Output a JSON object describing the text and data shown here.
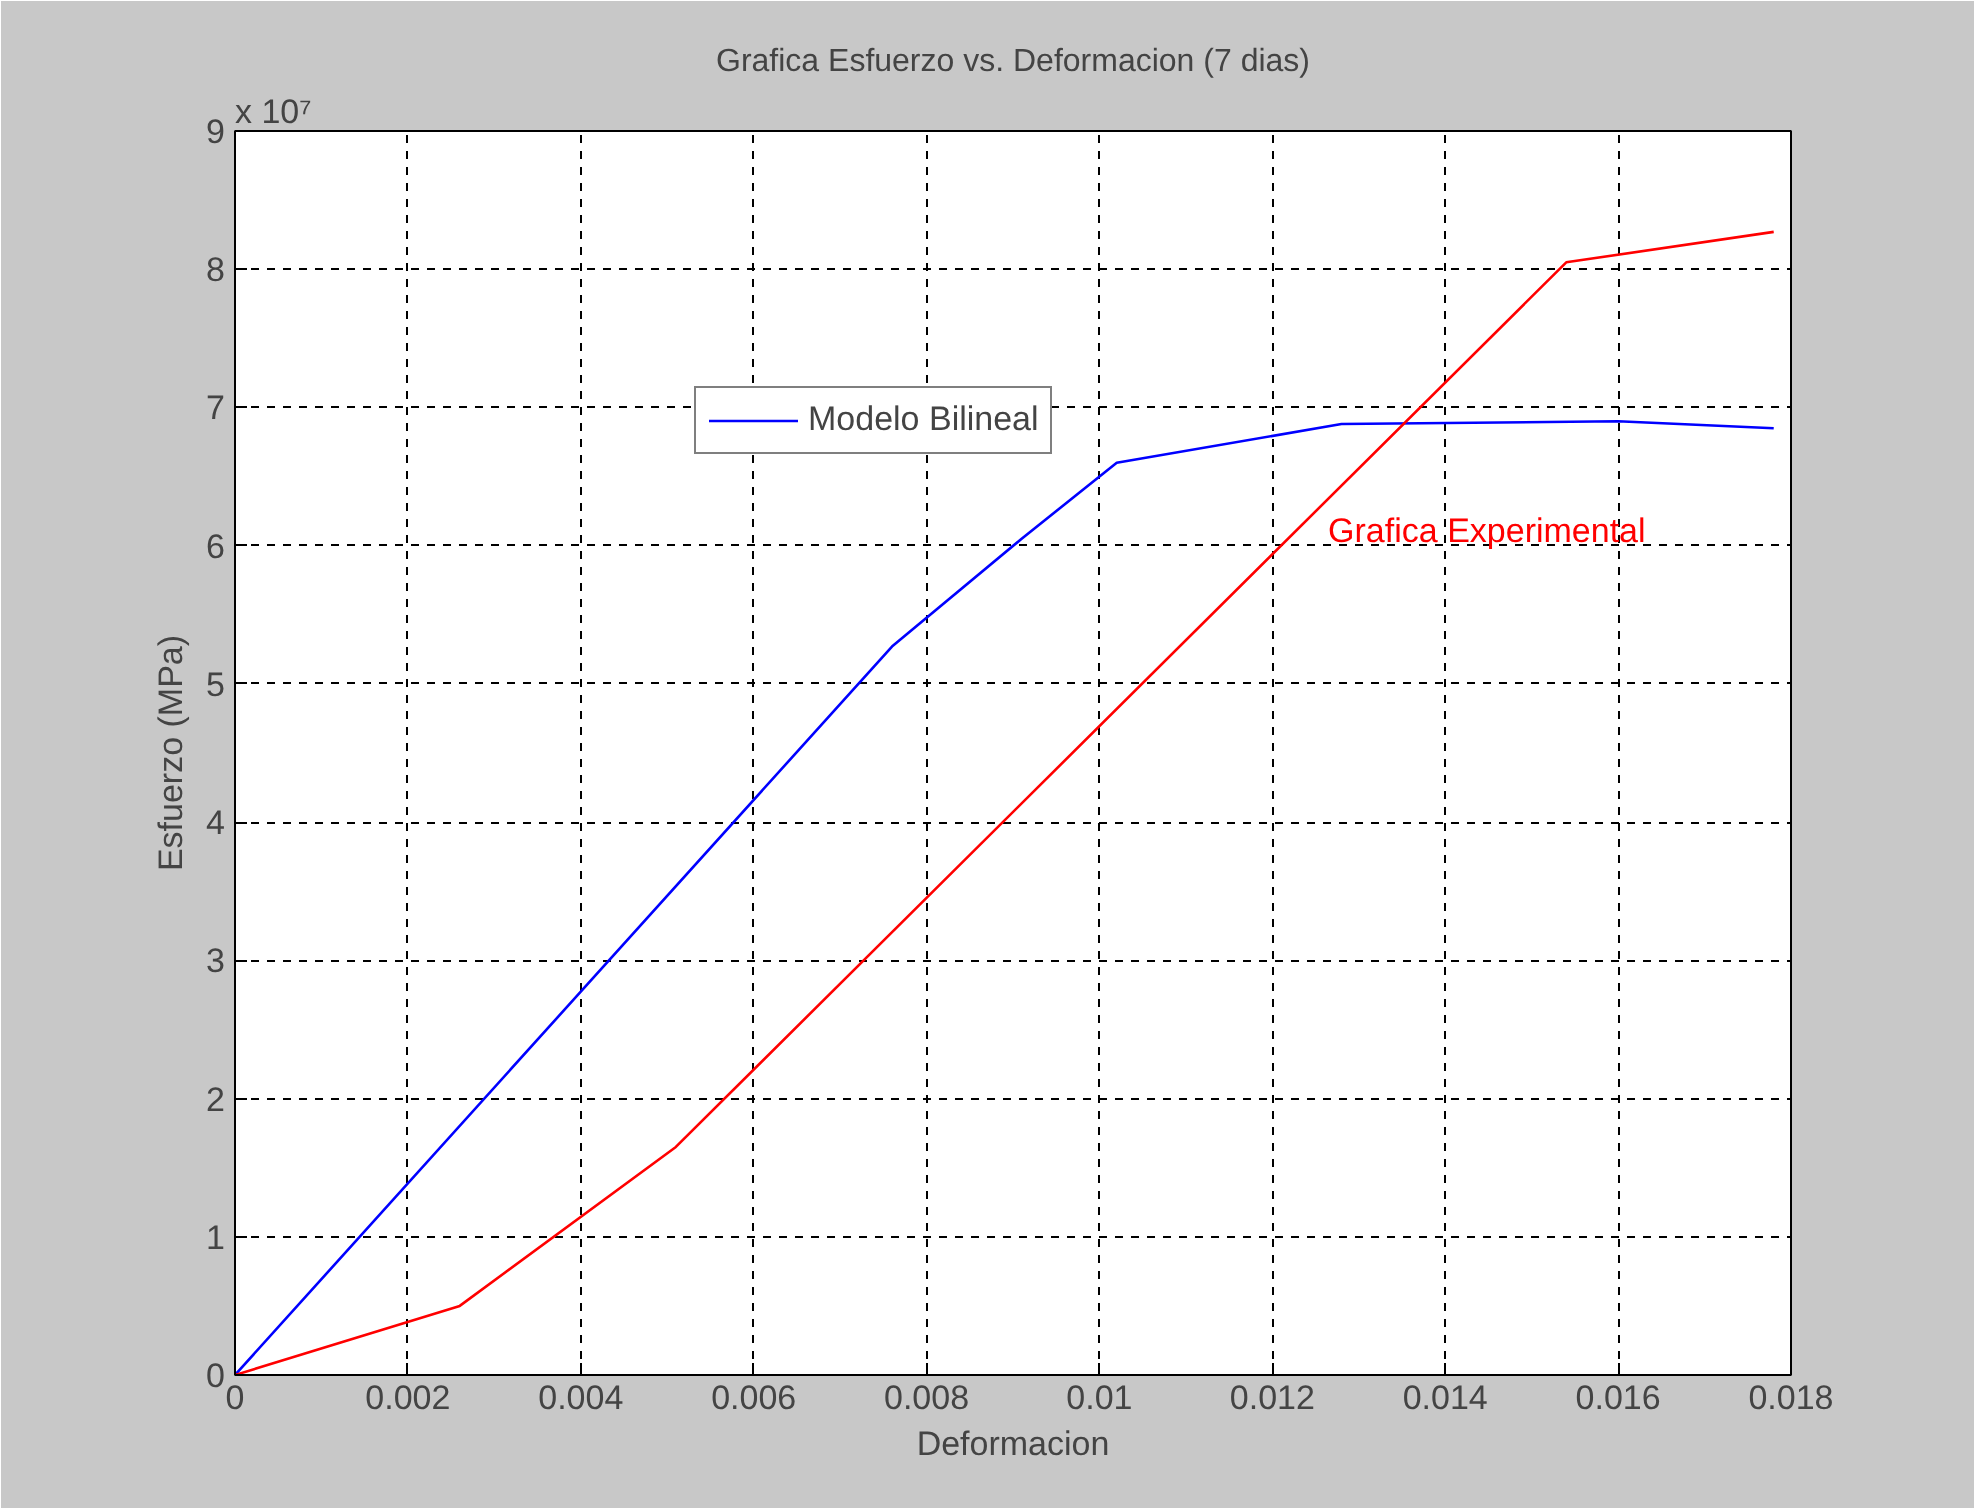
{
  "chart_data": {
    "type": "line",
    "title": "Grafica Esfuerzo vs. Deformacion (7 dias)",
    "xlabel": "Deformacion",
    "ylabel": "Esfuerzo (MPa)",
    "series": [
      {
        "name": "Modelo Bilineal",
        "color": "#0000ff",
        "x": [
          0,
          0.0076,
          0.0091,
          0.0102,
          0.0128,
          0.016,
          0.0178
        ],
        "values": [
          0,
          5.27,
          6.05,
          6.6,
          6.88,
          6.9,
          6.85
        ]
      },
      {
        "name": "Grafica Experimental",
        "color": "#ff0000",
        "x": [
          0,
          0.0026,
          0.0051,
          0.0154,
          0.0178
        ],
        "values": [
          0,
          0.5,
          1.65,
          8.05,
          8.27
        ]
      }
    ],
    "annotations": [
      "x 10⁷"
    ],
    "xlim": [
      0,
      0.018
    ],
    "ylim": [
      0,
      9
    ],
    "xticks": [
      0,
      0.002,
      0.004,
      0.006,
      0.008,
      0.01,
      0.012,
      0.014,
      0.016,
      0.018
    ],
    "yticks": [
      0,
      1,
      2,
      3,
      4,
      5,
      6,
      7,
      8,
      9
    ],
    "grid": true,
    "legend": "top",
    "marker": "none",
    "line_style": "solid"
  }
}
